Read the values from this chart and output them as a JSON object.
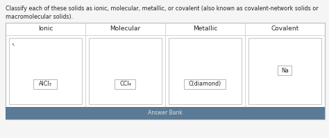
{
  "title_line1": "Classify each of these solids as ionic, molecular, metallic, or covalent (also known as covalent-network solids or",
  "title_line2": "macromolecular solids).",
  "columns": [
    "Ionic",
    "Molecular",
    "Metallic",
    "Covalent"
  ],
  "items": [
    {
      "label": "AlCl₃",
      "col": 0
    },
    {
      "label": "CCl₄",
      "col": 1
    },
    {
      "label": "C(diamond)",
      "col": 2
    },
    {
      "label": "Na",
      "col": 3
    }
  ],
  "answer_bank_label": "Answer Bank",
  "answer_bank_color": "#5a7a96",
  "bg_color": "#e8e8e8",
  "page_bg": "#f5f5f5",
  "box_bg": "#f0f0f0",
  "white": "#ffffff",
  "outer_border_color": "#bbbbbb",
  "inner_border_color": "#cccccc",
  "item_border_color": "#aaaaaa",
  "text_color": "#222222",
  "answer_text_color": "#dddddd",
  "font_size_title": 5.8,
  "font_size_col": 6.5,
  "font_size_item": 5.8,
  "font_size_answer": 5.5
}
